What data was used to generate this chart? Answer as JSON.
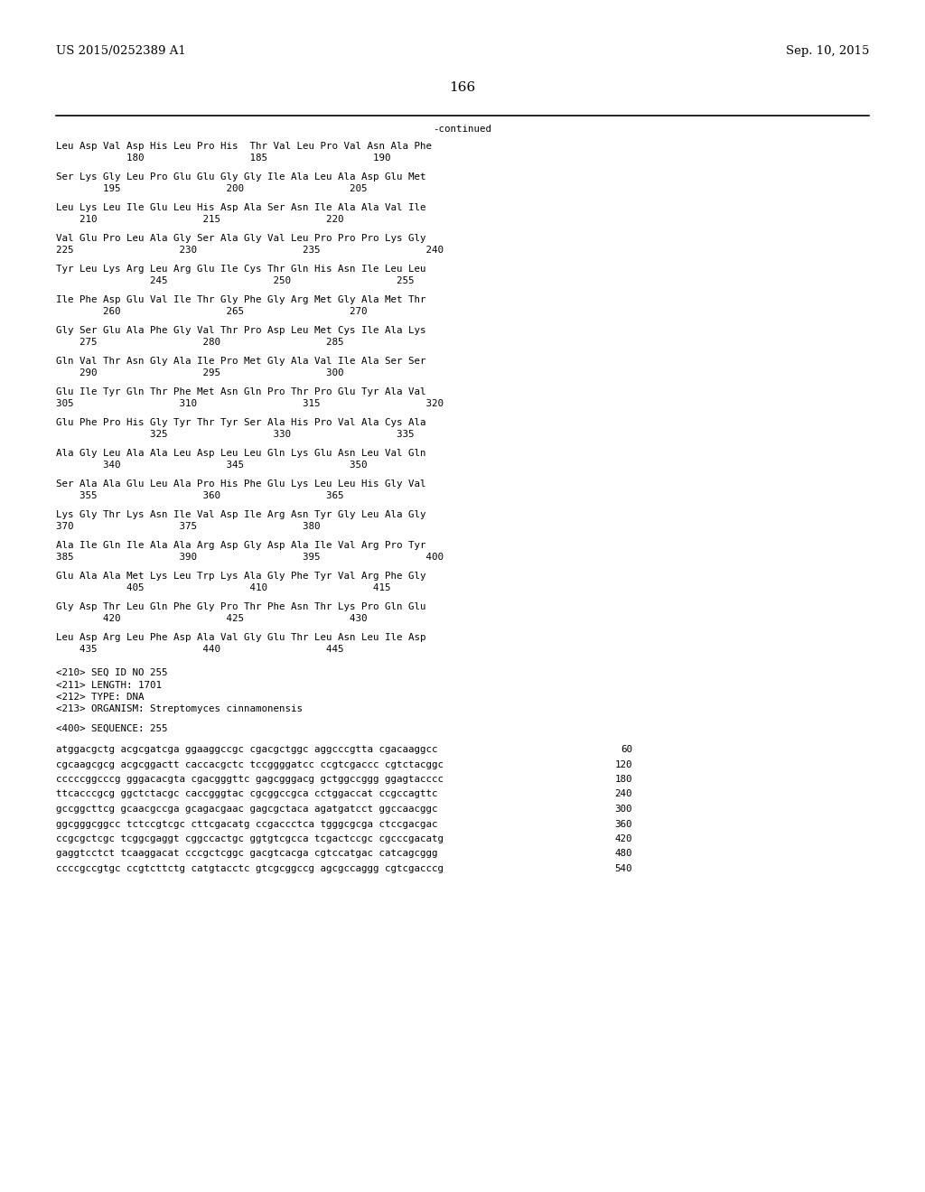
{
  "header_left": "US 2015/0252389 A1",
  "header_right": "Sep. 10, 2015",
  "page_number": "166",
  "continued_label": "-continued",
  "background_color": "#ffffff",
  "text_color": "#000000",
  "font_size_header": 9.5,
  "font_size_body": 7.8,
  "font_size_page": 11,
  "amino_acid_lines": [
    [
      "Leu Asp Val Asp His Leu Pro His  Thr Val Leu Pro Val Asn Ala Phe",
      "            180                  185                  190"
    ],
    [
      "Ser Lys Gly Leu Pro Glu Glu Gly Gly Ile Ala Leu Ala Asp Glu Met",
      "        195                  200                  205"
    ],
    [
      "Leu Lys Leu Ile Glu Leu His Asp Ala Ser Asn Ile Ala Ala Val Ile",
      "    210                  215                  220"
    ],
    [
      "Val Glu Pro Leu Ala Gly Ser Ala Gly Val Leu Pro Pro Pro Lys Gly",
      "225                  230                  235                  240"
    ],
    [
      "Tyr Leu Lys Arg Leu Arg Glu Ile Cys Thr Gln His Asn Ile Leu Leu",
      "                245                  250                  255"
    ],
    [
      "Ile Phe Asp Glu Val Ile Thr Gly Phe Gly Arg Met Gly Ala Met Thr",
      "        260                  265                  270"
    ],
    [
      "Gly Ser Glu Ala Phe Gly Val Thr Pro Asp Leu Met Cys Ile Ala Lys",
      "    275                  280                  285"
    ],
    [
      "Gln Val Thr Asn Gly Ala Ile Pro Met Gly Ala Val Ile Ala Ser Ser",
      "    290                  295                  300"
    ],
    [
      "Glu Ile Tyr Gln Thr Phe Met Asn Gln Pro Thr Pro Glu Tyr Ala Val",
      "305                  310                  315                  320"
    ],
    [
      "Glu Phe Pro His Gly Tyr Thr Tyr Ser Ala His Pro Val Ala Cys Ala",
      "                325                  330                  335"
    ],
    [
      "Ala Gly Leu Ala Ala Leu Asp Leu Leu Gln Lys Glu Asn Leu Val Gln",
      "        340                  345                  350"
    ],
    [
      "Ser Ala Ala Glu Leu Ala Pro His Phe Glu Lys Leu Leu His Gly Val",
      "    355                  360                  365"
    ],
    [
      "Lys Gly Thr Lys Asn Ile Val Asp Ile Arg Asn Tyr Gly Leu Ala Gly",
      "370                  375                  380"
    ],
    [
      "Ala Ile Gln Ile Ala Ala Arg Asp Gly Asp Ala Ile Val Arg Pro Tyr",
      "385                  390                  395                  400"
    ],
    [
      "Glu Ala Ala Met Lys Leu Trp Lys Ala Gly Phe Tyr Val Arg Phe Gly",
      "            405                  410                  415"
    ],
    [
      "Gly Asp Thr Leu Gln Phe Gly Pro Thr Phe Asn Thr Lys Pro Gln Glu",
      "        420                  425                  430"
    ],
    [
      "Leu Asp Arg Leu Phe Asp Ala Val Gly Glu Thr Leu Asn Leu Ile Asp",
      "    435                  440                  445"
    ]
  ],
  "metadata_lines": [
    "<210> SEQ ID NO 255",
    "<211> LENGTH: 1701",
    "<212> TYPE: DNA",
    "<213> ORGANISM: Streptomyces cinnamonensis",
    "",
    "<400> SEQUENCE: 255"
  ],
  "sequence_lines": [
    [
      "atggacgctg acgcgatcga ggaaggccgc cgacgctggc aggcccgtta cgacaaggcc",
      "60"
    ],
    [
      "cgcaagcgcg acgcggactt caccacgctc tccggggatcc ccgtcgaccc cgtctacggc",
      "120"
    ],
    [
      "cccccggcccg gggacacgta cgacgggttc gagcgggacg gctggccggg ggagtacccc",
      "180"
    ],
    [
      "ttcacccgcg ggctctacgc caccgggtac cgcggccgca cctggaccat ccgccagttc",
      "240"
    ],
    [
      "gccggcttcg gcaacgccga gcagacgaac gagcgctaca agatgatcct ggccaacggc",
      "300"
    ],
    [
      "ggcgggcggcc tctccgtcgc cttcgacatg ccgaccctca tgggcgcga ctccgacgac",
      "360"
    ],
    [
      "ccgcgctcgc tcggcgaggt cggccactgc ggtgtcgcca tcgactccgc cgcccgacatg",
      "420"
    ],
    [
      "gaggtcctct tcaaggacat cccgctcggc gacgtcacga cgtccatgac catcagcggg",
      "480"
    ],
    [
      "ccccgccgtgc ccgtcttctg catgtacctc gtcgcggccg agcgccaggg cgtcgacccg",
      "540"
    ]
  ]
}
